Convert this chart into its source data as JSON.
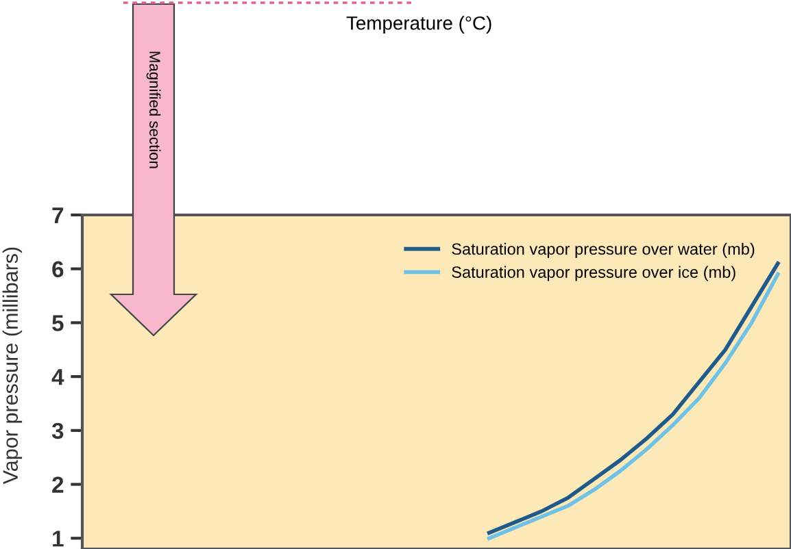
{
  "chart_data": {
    "type": "line",
    "ylabel": "Vapor pressure (millibars)",
    "annotations": [
      "Temperature (°C)",
      "Magnified section"
    ],
    "categories": [
      null,
      null,
      null,
      null,
      null,
      null,
      null,
      null,
      null,
      null,
      null,
      null,
      null,
      null,
      null,
      null,
      null,
      null,
      null,
      null,
      null,
      null,
      null,
      null,
      null,
      null,
      null
    ],
    "series": [
      {
        "name": "Saturation vapor pressure over water (mb)",
        "color": "#1f5a8a",
        "values": [
          null,
          null,
          null,
          null,
          null,
          null,
          null,
          null,
          null,
          null,
          null,
          null,
          null,
          null,
          null,
          1.1,
          1.3,
          1.5,
          1.75,
          2.1,
          2.45,
          2.85,
          3.3,
          3.9,
          4.5,
          5.3,
          6.1
        ]
      },
      {
        "name": "Saturation vapor pressure over ice (mb)",
        "color": "#6fc1e6",
        "values": [
          null,
          null,
          null,
          null,
          null,
          null,
          null,
          null,
          null,
          null,
          null,
          null,
          null,
          null,
          null,
          1.0,
          1.2,
          1.4,
          1.6,
          1.9,
          2.25,
          2.65,
          3.1,
          3.6,
          4.25,
          5.0,
          5.9
        ]
      }
    ],
    "ylim": [
      0.8,
      7
    ],
    "yticks": [
      1,
      2,
      3,
      4,
      5,
      6,
      7
    ],
    "legend": "top right",
    "grid": false,
    "marker": "none",
    "line_style": "solid"
  }
}
